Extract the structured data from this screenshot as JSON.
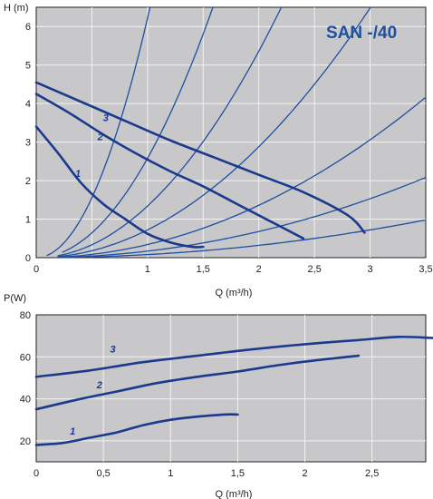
{
  "chart_data": [
    {
      "type": "line",
      "title": "SAN -/40",
      "ylabel": "H (m)",
      "xlabel": "Q (m³/h)",
      "xlim": [
        0,
        3.5
      ],
      "ylim": [
        0,
        6.5
      ],
      "xticks": [
        0,
        0.5,
        1,
        1.5,
        2,
        2.5,
        3,
        3.5
      ],
      "xtick_labels": [
        "0",
        "",
        "1",
        "1,5",
        "2",
        "2,5",
        "3",
        "3,5"
      ],
      "yticks": [
        0,
        1,
        2,
        3,
        4,
        5,
        6
      ],
      "ytick_labels": [
        "0",
        "1",
        "2",
        "3",
        "4",
        "5",
        "6"
      ],
      "grid": true,
      "background": "#c8c8ca",
      "series": [
        {
          "name": "1",
          "color": "#1b3a8c",
          "points": [
            [
              0,
              3.4
            ],
            [
              0.2,
              2.7
            ],
            [
              0.4,
              1.95
            ],
            [
              0.6,
              1.4
            ],
            [
              0.8,
              1.0
            ],
            [
              1.0,
              0.62
            ],
            [
              1.2,
              0.4
            ],
            [
              1.4,
              0.28
            ],
            [
              1.5,
              0.28
            ]
          ]
        },
        {
          "name": "2",
          "color": "#1b3a8c",
          "points": [
            [
              0,
              4.25
            ],
            [
              0.3,
              3.75
            ],
            [
              0.6,
              3.2
            ],
            [
              0.9,
              2.7
            ],
            [
              1.2,
              2.25
            ],
            [
              1.5,
              1.85
            ],
            [
              1.8,
              1.4
            ],
            [
              2.1,
              0.95
            ],
            [
              2.4,
              0.5
            ]
          ]
        },
        {
          "name": "3",
          "color": "#1b3a8c",
          "points": [
            [
              0,
              4.55
            ],
            [
              0.4,
              4.05
            ],
            [
              0.8,
              3.55
            ],
            [
              1.2,
              3.05
            ],
            [
              1.6,
              2.6
            ],
            [
              2.0,
              2.15
            ],
            [
              2.4,
              1.7
            ],
            [
              2.8,
              1.1
            ],
            [
              2.95,
              0.65
            ]
          ]
        }
      ],
      "system_curves": [
        {
          "k": 6.22,
          "x_start": 0.1
        },
        {
          "k": 2.58,
          "x_start": 0.24
        },
        {
          "k": 1.34,
          "x_start": 0.2
        },
        {
          "k": 0.72,
          "x_start": 0.2
        },
        {
          "k": 0.34,
          "x_start": 0.2
        },
        {
          "k": 0.17,
          "x_start": 0.2
        },
        {
          "k": 0.08,
          "x_start": 0.25
        }
      ]
    },
    {
      "type": "line",
      "ylabel": "P(W)",
      "xlabel": "Q (m³/h)",
      "xlim": [
        0,
        2.9
      ],
      "ylim": [
        10,
        80
      ],
      "xticks": [
        0,
        0.5,
        1,
        1.5,
        2,
        2.5
      ],
      "xtick_labels": [
        "0",
        "0,5",
        "1",
        "1,5",
        "2",
        "2,5"
      ],
      "yticks": [
        20,
        40,
        60,
        80
      ],
      "ytick_labels": [
        "20",
        "40",
        "60",
        "80"
      ],
      "grid": true,
      "background": "#c8c8ca",
      "series": [
        {
          "name": "1",
          "color": "#1b3a8c",
          "points": [
            [
              0,
              18
            ],
            [
              0.2,
              19
            ],
            [
              0.4,
              21.5
            ],
            [
              0.6,
              24
            ],
            [
              0.8,
              27.5
            ],
            [
              1.0,
              30
            ],
            [
              1.2,
              31.5
            ],
            [
              1.4,
              32.5
            ],
            [
              1.5,
              32.5
            ]
          ]
        },
        {
          "name": "2",
          "color": "#1b3a8c",
          "points": [
            [
              0,
              35
            ],
            [
              0.3,
              39.5
            ],
            [
              0.6,
              43.5
            ],
            [
              0.9,
              47.5
            ],
            [
              1.2,
              50.5
            ],
            [
              1.5,
              53
            ],
            [
              1.8,
              56
            ],
            [
              2.1,
              58.5
            ],
            [
              2.4,
              60.5
            ]
          ]
        },
        {
          "name": "3",
          "color": "#1b3a8c",
          "points": [
            [
              0,
              50.5
            ],
            [
              0.4,
              53.5
            ],
            [
              0.8,
              57.5
            ],
            [
              1.2,
              60.5
            ],
            [
              1.6,
              63.5
            ],
            [
              2.0,
              66
            ],
            [
              2.4,
              68
            ],
            [
              2.7,
              69.5
            ],
            [
              2.95,
              69
            ]
          ]
        }
      ]
    }
  ]
}
